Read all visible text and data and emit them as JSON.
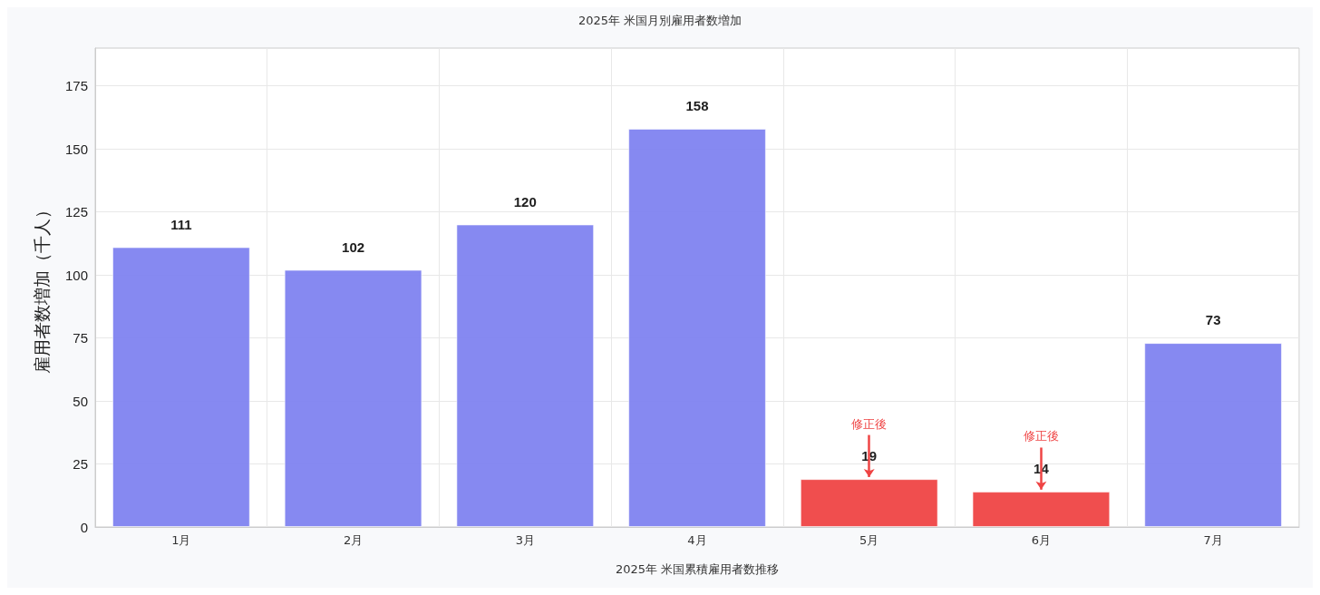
{
  "chart_data": {
    "type": "bar",
    "title": "2025年 米国月別雇用者数増加",
    "xlabel": "2025年 米国累積雇用者数推移",
    "ylabel": "雇用者数増加（千人）",
    "categories": [
      "1月",
      "2月",
      "3月",
      "4月",
      "5月",
      "6月",
      "7月"
    ],
    "values": [
      111,
      102,
      120,
      158,
      19,
      14,
      73
    ],
    "colors": [
      "#8083f0",
      "#8083f0",
      "#8083f0",
      "#8083f0",
      "#ef4444",
      "#ef4444",
      "#8083f0"
    ],
    "data_labels": true,
    "ylim": [
      0,
      190
    ],
    "yticks": [
      0,
      25,
      50,
      75,
      100,
      125,
      150,
      175
    ],
    "grid": true,
    "annotations": [
      {
        "text": "修正後",
        "x": "5月",
        "y": 19
      },
      {
        "text": "修正後",
        "x": "6月",
        "y": 14
      }
    ]
  }
}
